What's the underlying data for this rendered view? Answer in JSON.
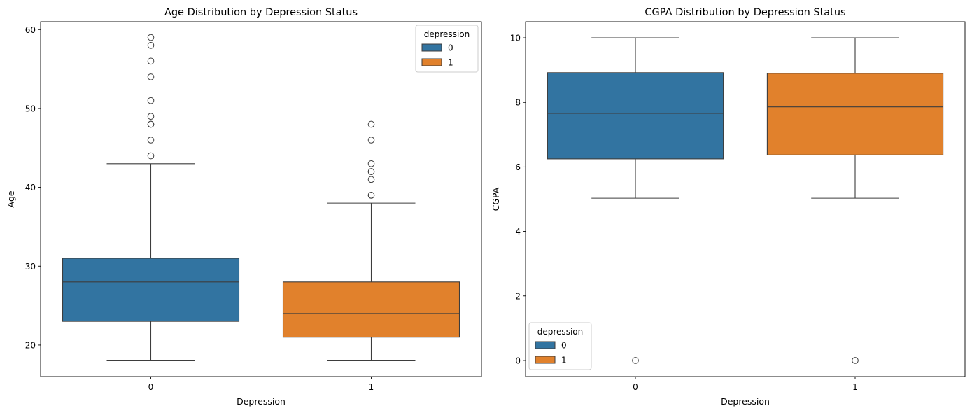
{
  "colors": {
    "category_0": "#3274a1",
    "category_1": "#e1812c",
    "box_edge": "#3d3d3d",
    "axis": "#000000",
    "background": "#ffffff"
  },
  "chart_data": [
    {
      "type": "box",
      "title": "Age Distribution by Depression Status",
      "xlabel": "Depression",
      "ylabel": "Age",
      "categories": [
        "0",
        "1"
      ],
      "ylim": [
        16,
        61
      ],
      "yticks": [
        20,
        30,
        40,
        50,
        60
      ],
      "grid": false,
      "legend": {
        "title": "depression",
        "entries": [
          "0",
          "1"
        ],
        "position": "top-right"
      },
      "boxes": [
        {
          "category": "0",
          "whisker_low": 18,
          "q1": 23,
          "median": 28,
          "q3": 31,
          "whisker_high": 43,
          "outliers": [
            44,
            46,
            48,
            48,
            49,
            51,
            54,
            56,
            58,
            59
          ]
        },
        {
          "category": "1",
          "whisker_low": 18,
          "q1": 21,
          "median": 24,
          "q3": 28,
          "whisker_high": 38,
          "outliers": [
            39,
            39,
            41,
            42,
            42,
            43,
            46,
            48
          ]
        }
      ]
    },
    {
      "type": "box",
      "title": "CGPA Distribution by Depression Status",
      "xlabel": "Depression",
      "ylabel": "CGPA",
      "categories": [
        "0",
        "1"
      ],
      "ylim": [
        -0.5,
        10.5
      ],
      "yticks": [
        0,
        2,
        4,
        6,
        8,
        10
      ],
      "grid": false,
      "legend": {
        "title": "depression",
        "entries": [
          "0",
          "1"
        ],
        "position": "bottom-left"
      },
      "boxes": [
        {
          "category": "0",
          "whisker_low": 5.03,
          "q1": 6.25,
          "median": 7.66,
          "q3": 8.92,
          "whisker_high": 10.0,
          "outliers": [
            0
          ]
        },
        {
          "category": "1",
          "whisker_low": 5.03,
          "q1": 6.37,
          "median": 7.86,
          "q3": 8.9,
          "whisker_high": 10.0,
          "outliers": [
            0
          ]
        }
      ]
    }
  ]
}
